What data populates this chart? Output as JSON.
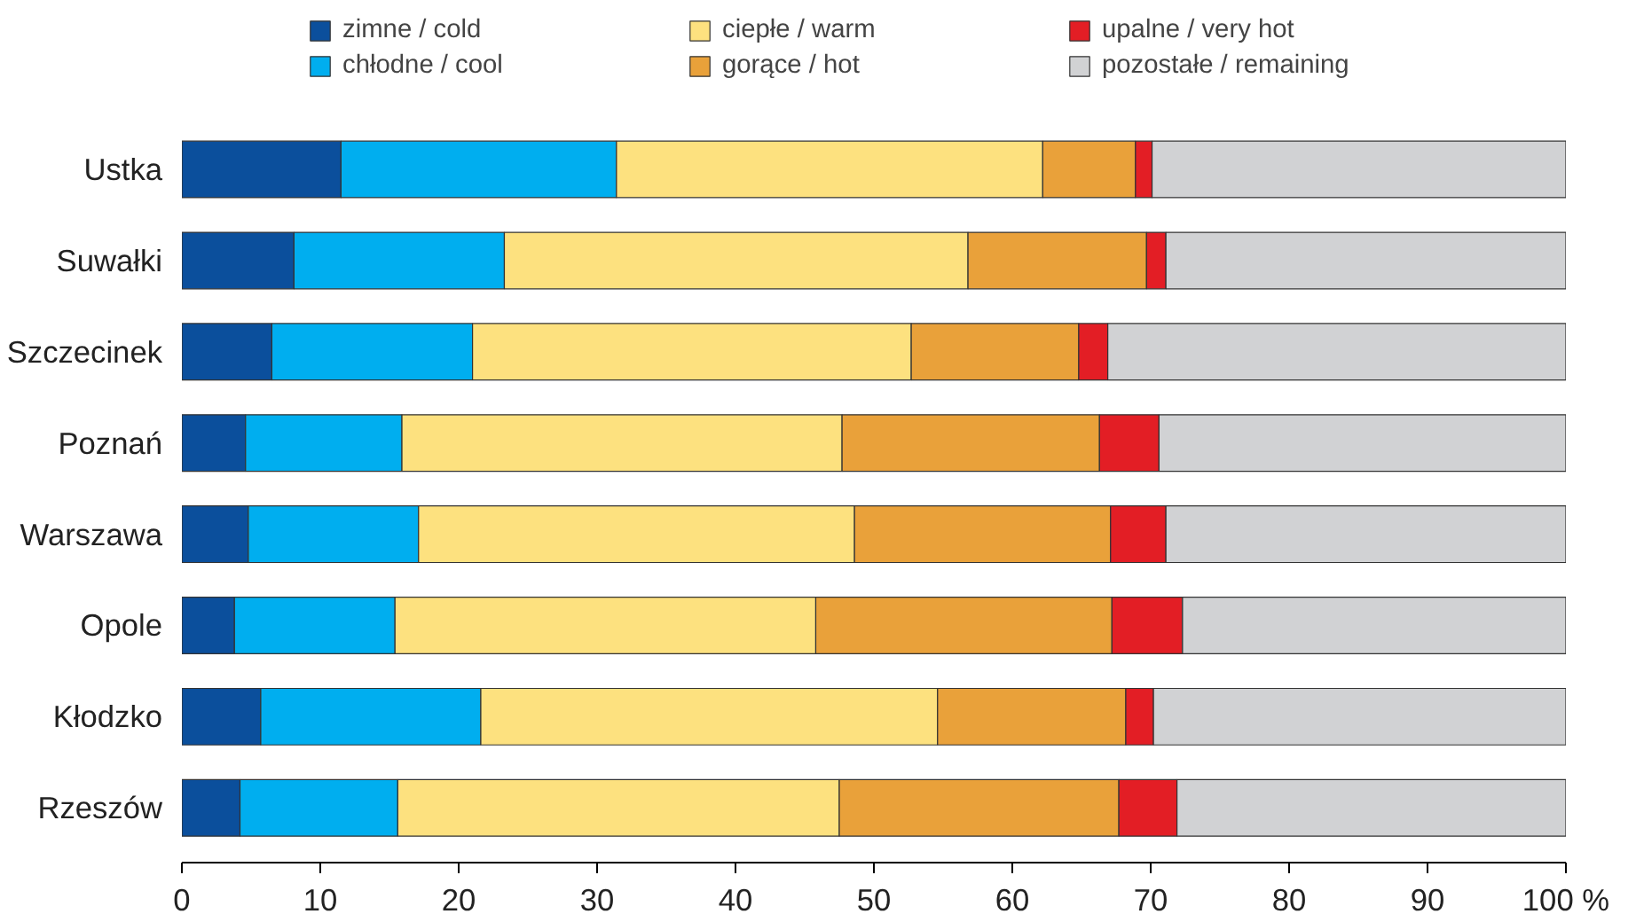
{
  "chart_data": {
    "type": "bar",
    "orientation": "horizontal",
    "stacked": true,
    "categories": [
      "Ustka",
      "Suwałki",
      "Szczecinek",
      "Poznań",
      "Warszawa",
      "Opole",
      "Kłodzko",
      "Rzeszów"
    ],
    "series": [
      {
        "name": "zimne / cold",
        "color": "#0b4f9c",
        "values": [
          11.5,
          8.1,
          6.5,
          4.6,
          4.8,
          3.8,
          5.7,
          4.2
        ]
      },
      {
        "name": "chłodne / cool",
        "color": "#00aeef",
        "values": [
          19.9,
          15.2,
          14.5,
          11.3,
          12.3,
          11.6,
          15.9,
          11.4
        ]
      },
      {
        "name": "ciepłe / warm",
        "color": "#fde17f",
        "values": [
          30.8,
          33.5,
          31.7,
          31.8,
          31.5,
          30.4,
          33.0,
          31.9
        ]
      },
      {
        "name": "gorące / hot",
        "color": "#e9a13a",
        "values": [
          6.7,
          12.9,
          12.1,
          18.6,
          18.5,
          21.4,
          13.6,
          20.2
        ]
      },
      {
        "name": "upalne / very hot",
        "color": "#e31e25",
        "values": [
          1.2,
          1.4,
          2.1,
          4.3,
          4.0,
          5.1,
          2.0,
          4.2
        ]
      },
      {
        "name": "pozostałe / remaining",
        "color": "#d1d2d4",
        "values": [
          29.9,
          28.9,
          33.1,
          29.4,
          28.9,
          27.7,
          29.8,
          28.1
        ]
      }
    ],
    "xlim": [
      0,
      100
    ],
    "xticks": [
      0,
      10,
      20,
      30,
      40,
      50,
      60,
      70,
      80,
      90,
      {
        "value": 100,
        "label": "100 %"
      }
    ],
    "grid": false,
    "legend": "top"
  }
}
